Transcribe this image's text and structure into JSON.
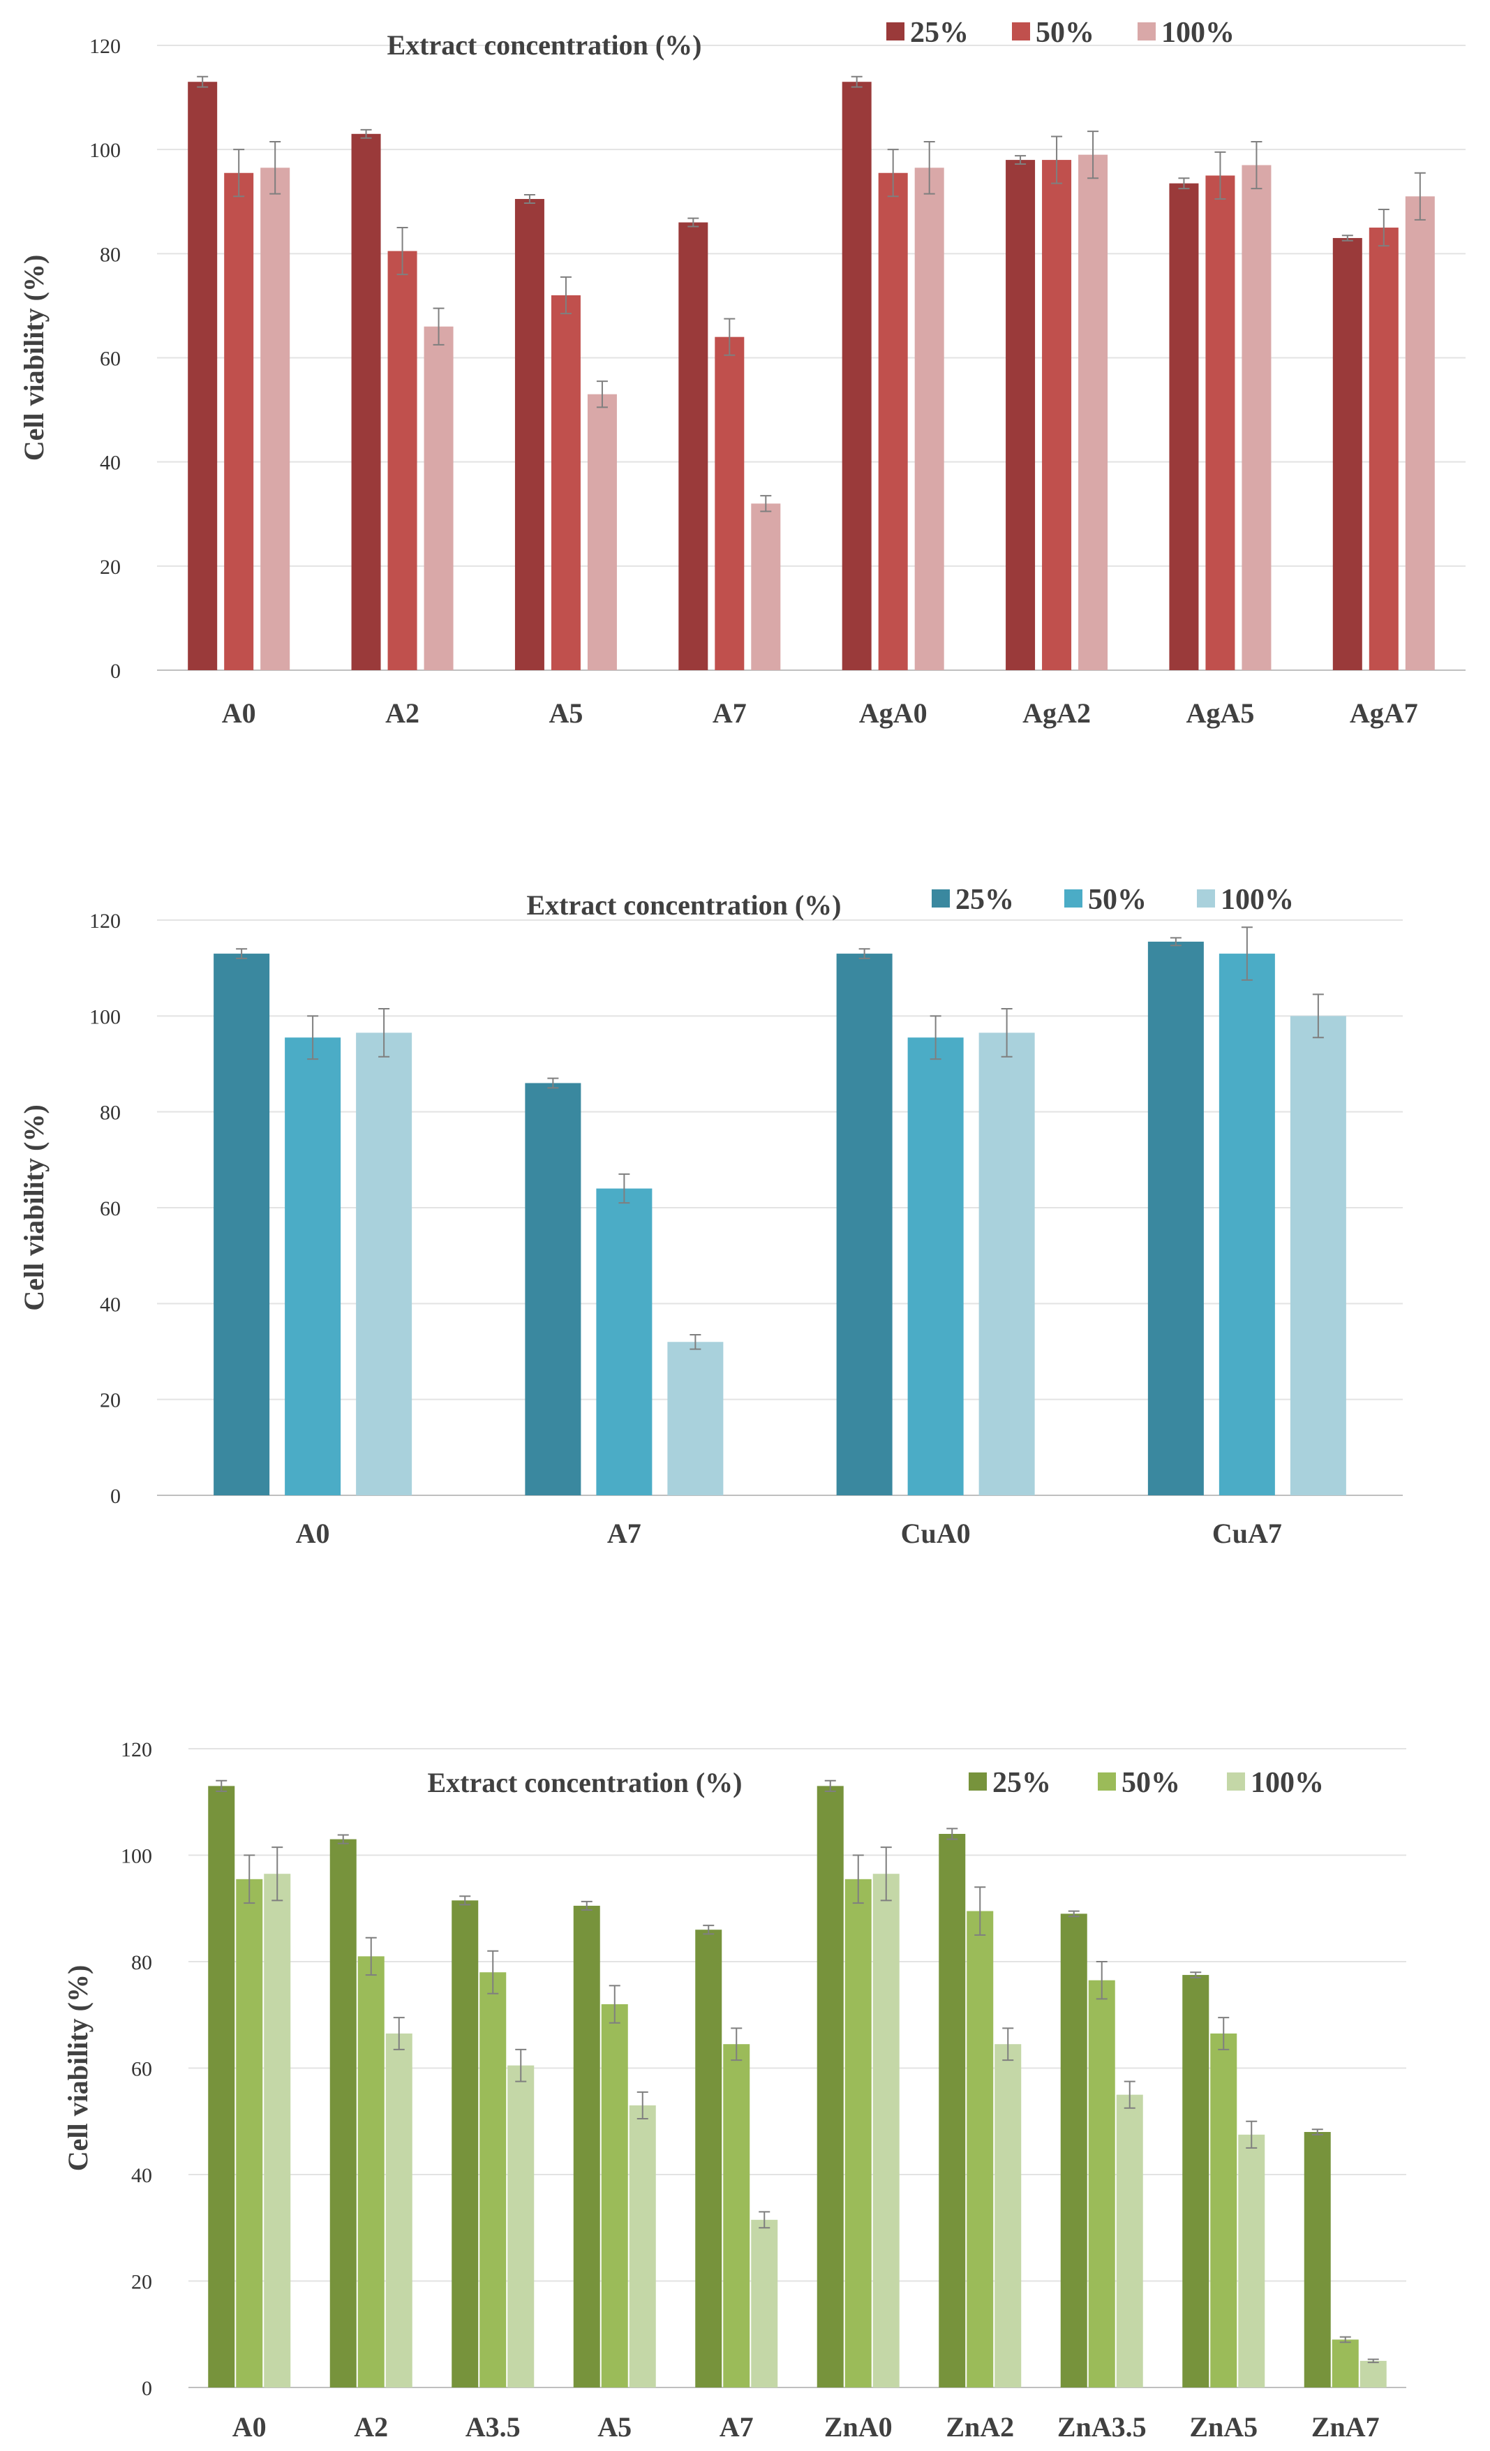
{
  "chart_data": [
    {
      "type": "bar",
      "title": "Extract concentration (%)",
      "xlabel": "",
      "ylabel": "Cell viability (%)",
      "ylim": [
        0,
        120
      ],
      "yticks": [
        0,
        20,
        40,
        60,
        80,
        100,
        120
      ],
      "grid": true,
      "legend": "top-right",
      "categories": [
        "A0",
        "A2",
        "A5",
        "A7",
        "AgA0",
        "AgA2",
        "AgA5",
        "AgA7"
      ],
      "series": [
        {
          "name": "25%",
          "color": "#9a3a3a",
          "values": [
            113,
            103,
            90.5,
            86,
            113,
            98,
            93.5,
            83
          ],
          "errors": [
            1,
            0.8,
            0.8,
            0.8,
            1,
            0.8,
            1,
            0.5
          ]
        },
        {
          "name": "50%",
          "color": "#c0504d",
          "values": [
            95.5,
            80.5,
            72,
            64,
            95.5,
            98,
            95,
            85
          ],
          "errors": [
            4.5,
            4.5,
            3.5,
            3.5,
            4.5,
            4.5,
            4.5,
            3.5
          ]
        },
        {
          "name": "100%",
          "color": "#d9a8a8",
          "values": [
            96.5,
            66,
            53,
            32,
            96.5,
            99,
            97,
            91
          ],
          "errors": [
            5,
            3.5,
            2.5,
            1.5,
            5,
            4.5,
            4.5,
            4.5
          ]
        }
      ]
    },
    {
      "type": "bar",
      "title": "Extract concentration (%)",
      "xlabel": "",
      "ylabel": "Cell viability (%)",
      "ylim": [
        0,
        120
      ],
      "yticks": [
        0,
        20,
        40,
        60,
        80,
        100,
        120
      ],
      "grid": true,
      "legend": "top-right",
      "categories": [
        "A0",
        "A7",
        "CuA0",
        "CuA7"
      ],
      "series": [
        {
          "name": "25%",
          "color": "#3a889f",
          "values": [
            113,
            86,
            113,
            115.5
          ],
          "errors": [
            1,
            1,
            1,
            0.8
          ]
        },
        {
          "name": "50%",
          "color": "#4bacc6",
          "values": [
            95.5,
            64,
            95.5,
            113
          ],
          "errors": [
            4.5,
            3,
            4.5,
            5.5
          ]
        },
        {
          "name": "100%",
          "color": "#a9d1dc",
          "values": [
            96.5,
            32,
            96.5,
            100
          ],
          "errors": [
            5,
            1.5,
            5,
            4.5
          ]
        }
      ]
    },
    {
      "type": "bar",
      "title": "Extract concentration (%)",
      "xlabel": "",
      "ylabel": "Cell viability (%)",
      "ylim": [
        0,
        120
      ],
      "yticks": [
        0,
        20,
        40,
        60,
        80,
        100,
        120
      ],
      "grid": true,
      "legend": "top-right",
      "categories": [
        "A0",
        "A2",
        "A3.5",
        "A5",
        "A7",
        "ZnA0",
        "ZnA2",
        "ZnA3.5",
        "ZnA5",
        "ZnA7"
      ],
      "series": [
        {
          "name": "25%",
          "color": "#77933c",
          "values": [
            113,
            103,
            91.5,
            90.5,
            86,
            113,
            104,
            89,
            77.5,
            48
          ],
          "errors": [
            1,
            0.8,
            0.8,
            0.8,
            0.8,
            1,
            1,
            0.5,
            0.5,
            0.5
          ]
        },
        {
          "name": "50%",
          "color": "#9bbb59",
          "values": [
            95.5,
            81,
            78,
            72,
            64.5,
            95.5,
            89.5,
            76.5,
            66.5,
            9
          ],
          "errors": [
            4.5,
            3.5,
            4,
            3.5,
            3,
            4.5,
            4.5,
            3.5,
            3,
            0.5
          ]
        },
        {
          "name": "100%",
          "color": "#c4d7a7",
          "values": [
            96.5,
            66.5,
            60.5,
            53,
            31.5,
            96.5,
            64.5,
            55,
            47.5,
            5
          ],
          "errors": [
            5,
            3,
            3,
            2.5,
            1.5,
            5,
            3,
            2.5,
            2.5,
            0.3
          ]
        }
      ]
    }
  ]
}
